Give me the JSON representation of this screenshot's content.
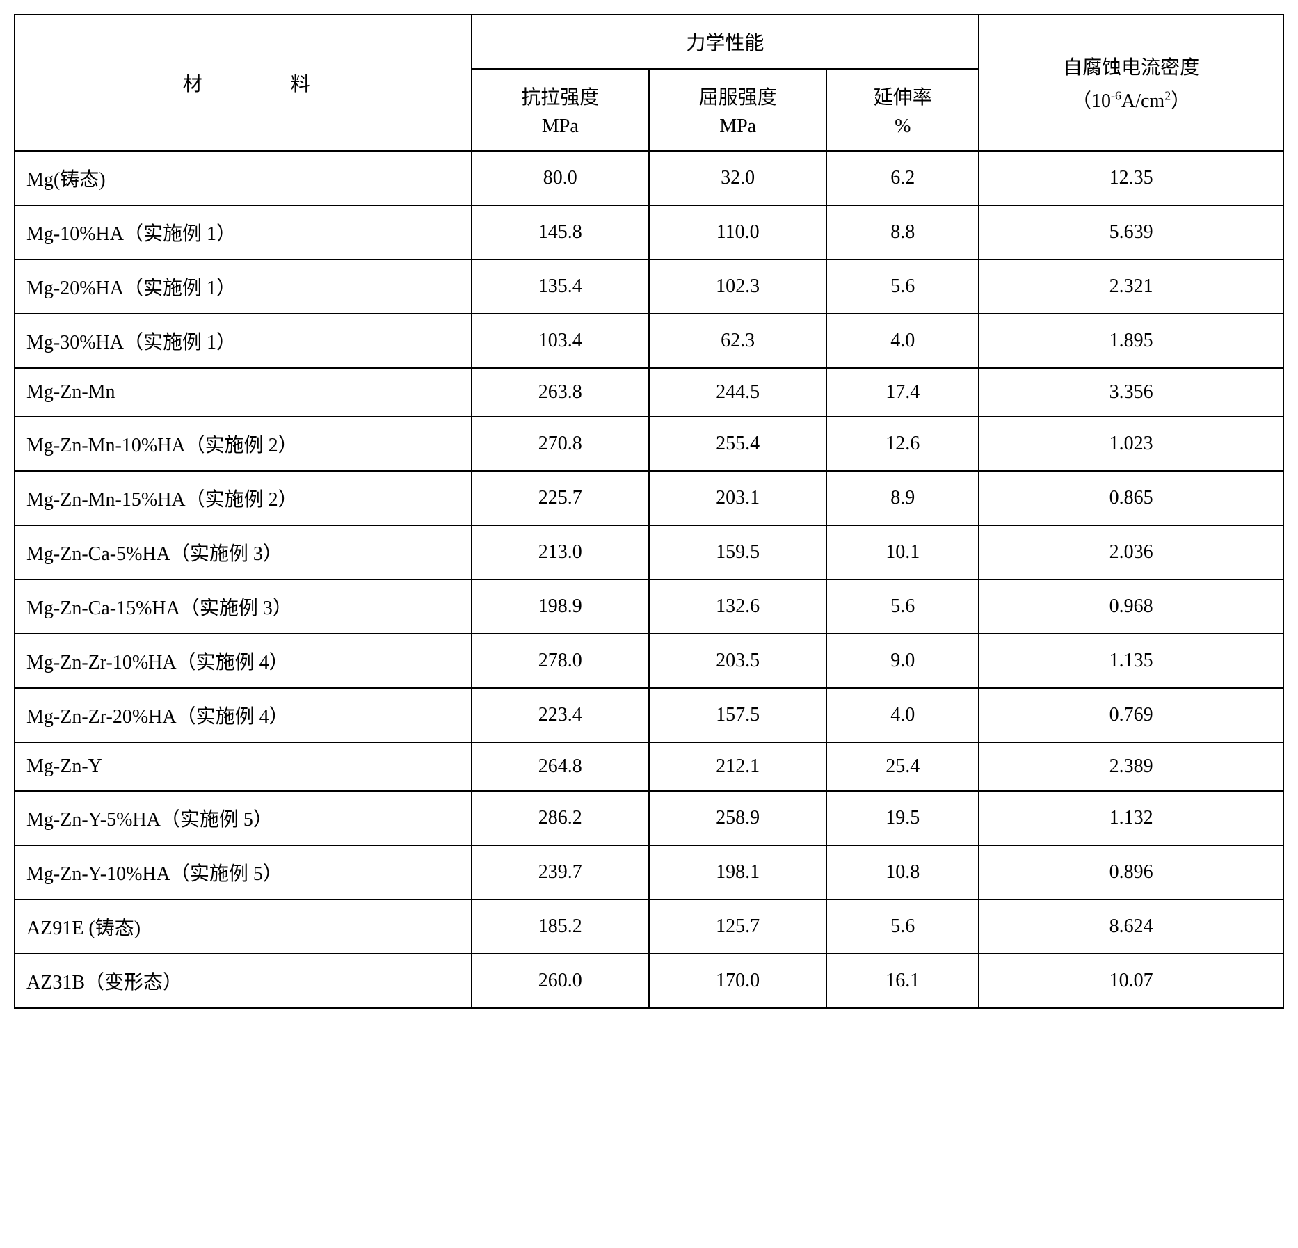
{
  "table": {
    "header": {
      "material_label": "材 料",
      "mech_group_label": "力学性能",
      "tensile_label": "抗拉强度",
      "tensile_unit": "MPa",
      "yield_label": "屈服强度",
      "yield_unit": "MPa",
      "elong_label": "延伸率",
      "elong_unit": "%",
      "corrosion_label": "自腐蚀电流密度",
      "corrosion_unit_prefix": "（10",
      "corrosion_unit_exp": "-6",
      "corrosion_unit_mid": "A/cm",
      "corrosion_unit_exp2": "2",
      "corrosion_unit_suffix": "）"
    },
    "rows": [
      {
        "material": "Mg(铸态)",
        "tensile": "80.0",
        "yield": "32.0",
        "elong": "6.2",
        "corrosion": "12.35"
      },
      {
        "material": "Mg-10%HA（实施例 1）",
        "tensile": "145.8",
        "yield": "110.0",
        "elong": "8.8",
        "corrosion": "5.639"
      },
      {
        "material": "Mg-20%HA（实施例 1）",
        "tensile": "135.4",
        "yield": "102.3",
        "elong": "5.6",
        "corrosion": "2.321"
      },
      {
        "material": "Mg-30%HA（实施例 1）",
        "tensile": "103.4",
        "yield": "62.3",
        "elong": "4.0",
        "corrosion": "1.895"
      },
      {
        "material": "Mg-Zn-Mn",
        "tensile": "263.8",
        "yield": "244.5",
        "elong": "17.4",
        "corrosion": "3.356"
      },
      {
        "material": "Mg-Zn-Mn-10%HA（实施例 2）",
        "tensile": "270.8",
        "yield": "255.4",
        "elong": "12.6",
        "corrosion": "1.023"
      },
      {
        "material": "Mg-Zn-Mn-15%HA（实施例 2）",
        "tensile": "225.7",
        "yield": "203.1",
        "elong": "8.9",
        "corrosion": "0.865"
      },
      {
        "material": "Mg-Zn-Ca-5%HA（实施例 3）",
        "tensile": "213.0",
        "yield": "159.5",
        "elong": "10.1",
        "corrosion": "2.036"
      },
      {
        "material": "Mg-Zn-Ca-15%HA（实施例 3）",
        "tensile": "198.9",
        "yield": "132.6",
        "elong": "5.6",
        "corrosion": "0.968"
      },
      {
        "material": "Mg-Zn-Zr-10%HA（实施例 4）",
        "tensile": "278.0",
        "yield": "203.5",
        "elong": "9.0",
        "corrosion": "1.135"
      },
      {
        "material": "Mg-Zn-Zr-20%HA（实施例 4）",
        "tensile": "223.4",
        "yield": "157.5",
        "elong": "4.0",
        "corrosion": "0.769"
      },
      {
        "material": "Mg-Zn-Y",
        "tensile": "264.8",
        "yield": "212.1",
        "elong": "25.4",
        "corrosion": "2.389"
      },
      {
        "material": "Mg-Zn-Y-5%HA（实施例 5）",
        "tensile": "286.2",
        "yield": "258.9",
        "elong": "19.5",
        "corrosion": "1.132"
      },
      {
        "material": "Mg-Zn-Y-10%HA（实施例 5）",
        "tensile": "239.7",
        "yield": "198.1",
        "elong": "10.8",
        "corrosion": "0.896"
      },
      {
        "material": "AZ91E (铸态)",
        "tensile": "185.2",
        "yield": "125.7",
        "elong": "5.6",
        "corrosion": "8.624"
      },
      {
        "material": "AZ31B（变形态）",
        "tensile": "260.0",
        "yield": "170.0",
        "elong": "16.1",
        "corrosion": "10.07"
      }
    ],
    "column_widths": [
      "36%",
      "14%",
      "14%",
      "12%",
      "24%"
    ],
    "border_color": "#000000",
    "background_color": "#ffffff",
    "text_color": "#000000",
    "font_size_pt": 28,
    "font_family": "SimSun"
  }
}
